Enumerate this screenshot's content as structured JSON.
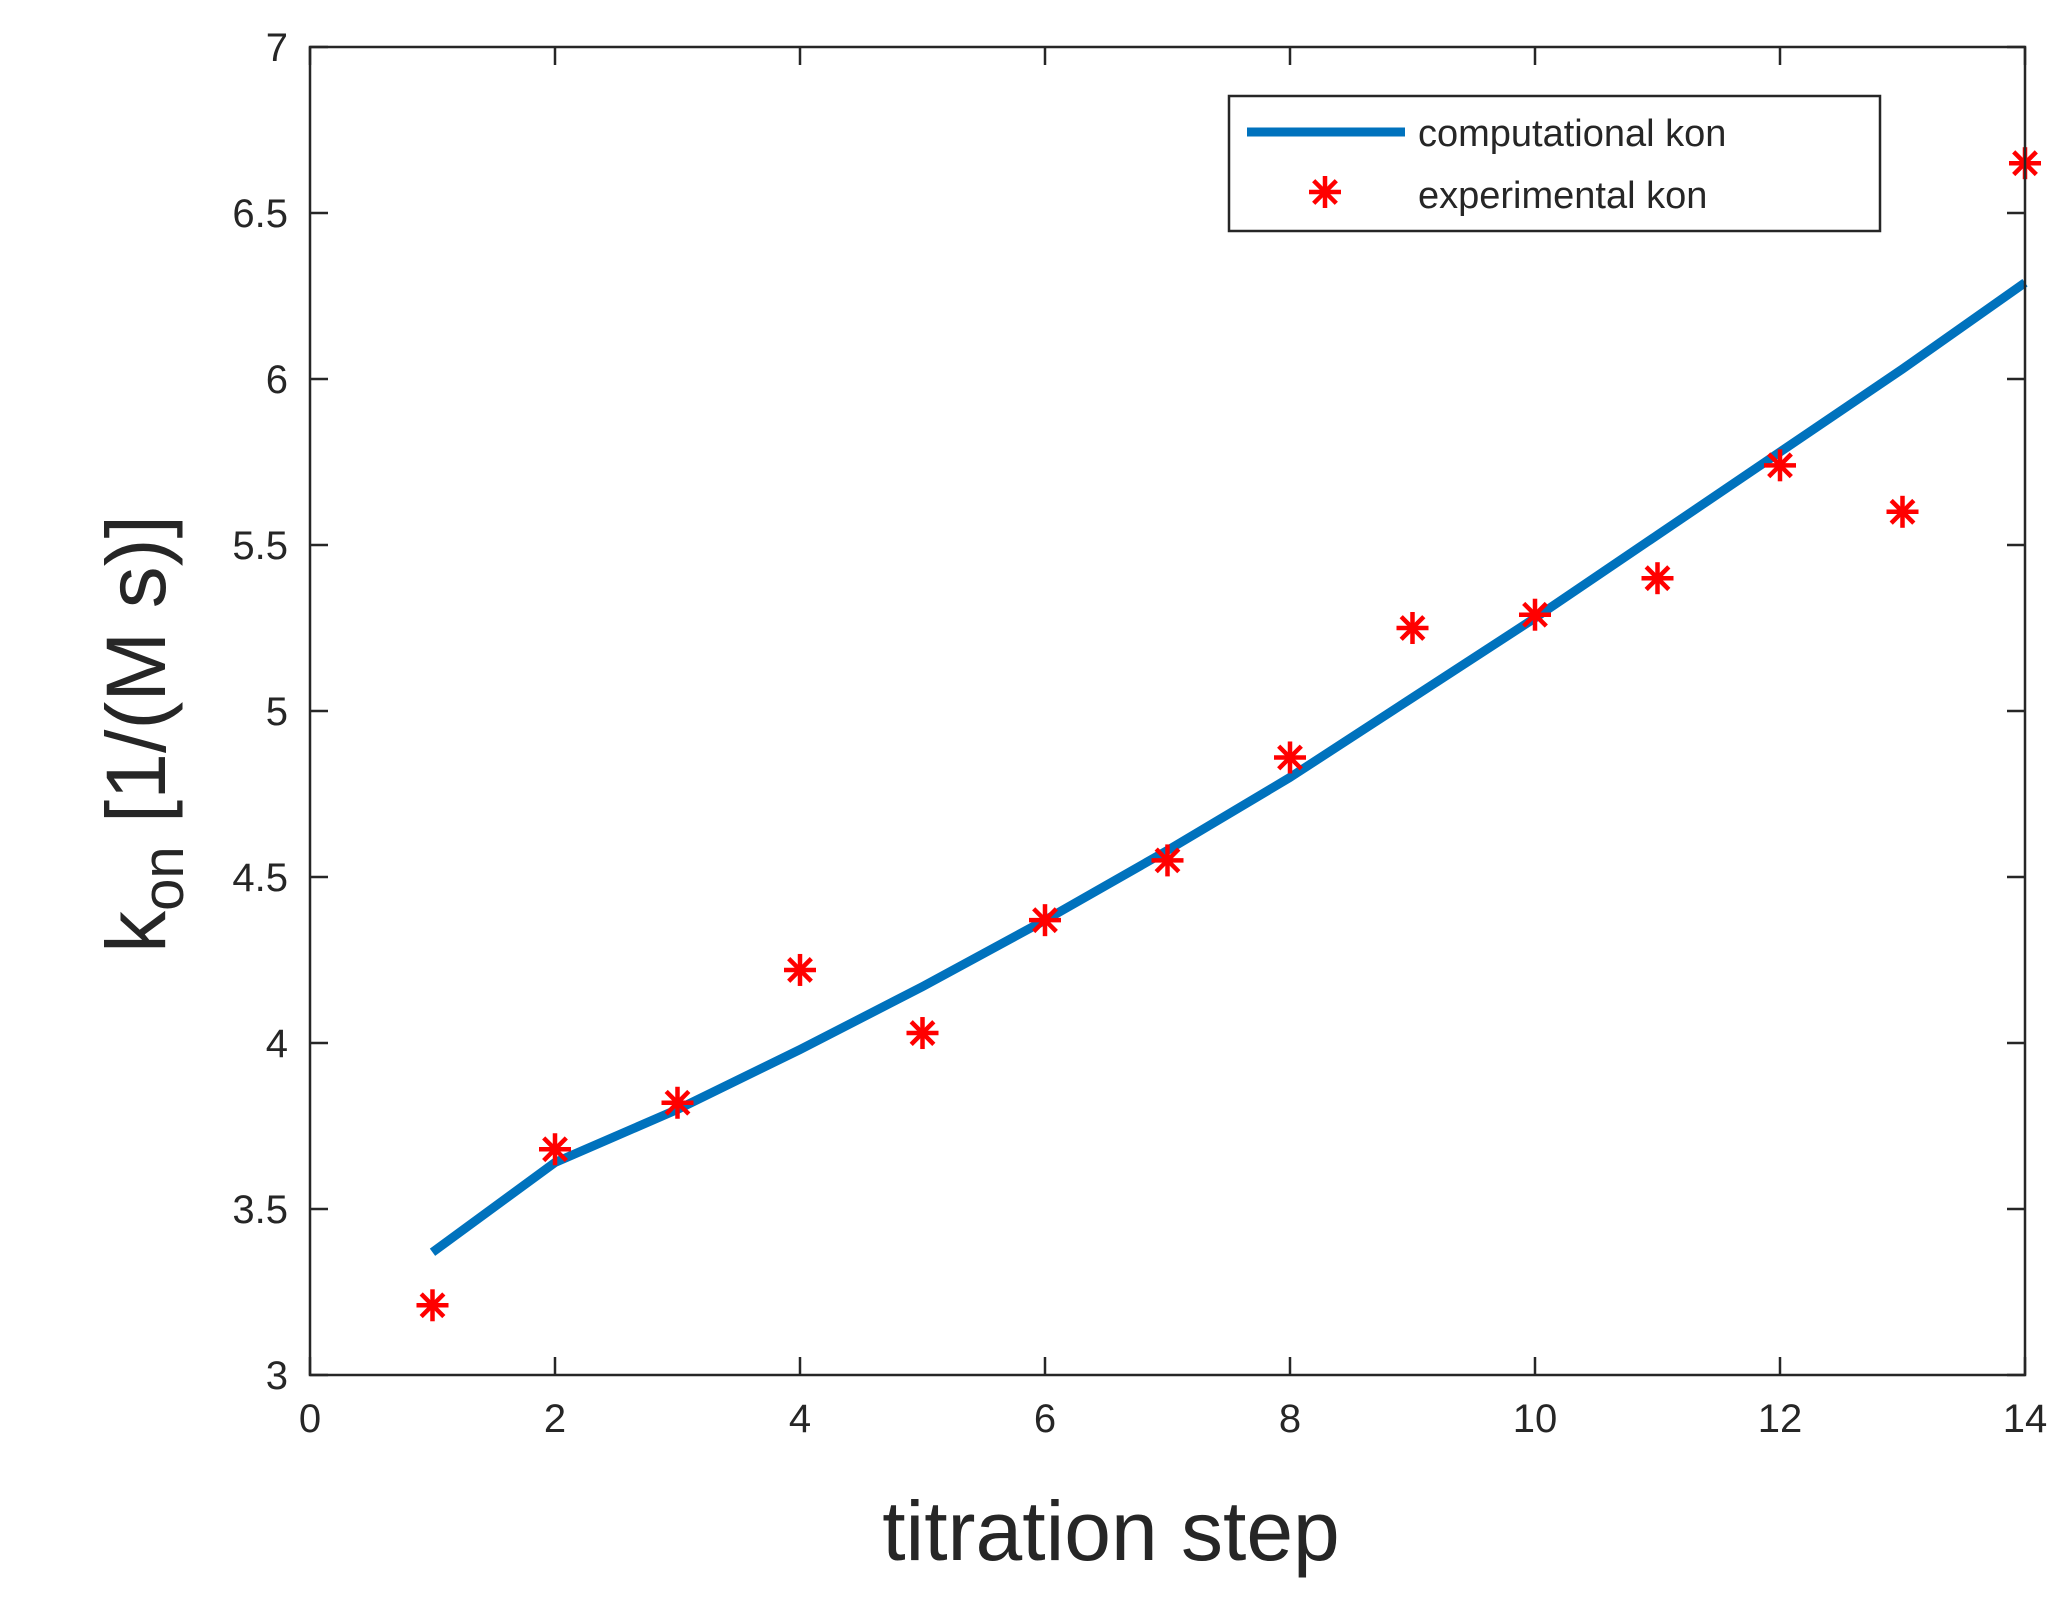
{
  "chart_data": {
    "type": "line",
    "xlabel": "titration step",
    "ylabel_main": "k",
    "ylabel_sub": "on",
    "ylabel_rest": " [1/(M s)]",
    "xlim": [
      0,
      14
    ],
    "ylim": [
      3,
      7
    ],
    "xticks": [
      0,
      2,
      4,
      6,
      8,
      10,
      12,
      14
    ],
    "yticks": [
      3,
      3.5,
      4,
      4.5,
      5,
      5.5,
      6,
      6.5,
      7
    ],
    "ytick_labels": [
      "3",
      "3.5",
      "4",
      "4.5",
      "5",
      "5.5",
      "6",
      "6.5",
      "7"
    ],
    "grid": false,
    "legend_position": "top-right",
    "series": [
      {
        "name": "computational kon",
        "kind": "line",
        "color": "#0072BD",
        "x": [
          1,
          2,
          3,
          4,
          5,
          6,
          7,
          8,
          9,
          10,
          11,
          12,
          13,
          14
        ],
        "y": [
          3.37,
          3.64,
          3.8,
          3.98,
          4.17,
          4.37,
          4.58,
          4.8,
          5.04,
          5.28,
          5.53,
          5.78,
          6.03,
          6.29
        ]
      },
      {
        "name": "experimental kon",
        "kind": "scatter",
        "marker": "asterisk",
        "color": "#FF0000",
        "x": [
          1,
          2,
          3,
          4,
          5,
          6,
          7,
          8,
          9,
          10,
          11,
          12,
          13,
          14
        ],
        "y": [
          3.21,
          3.68,
          3.82,
          4.22,
          4.03,
          4.37,
          4.55,
          4.86,
          5.25,
          5.29,
          5.4,
          5.74,
          5.6,
          6.65
        ]
      }
    ]
  }
}
